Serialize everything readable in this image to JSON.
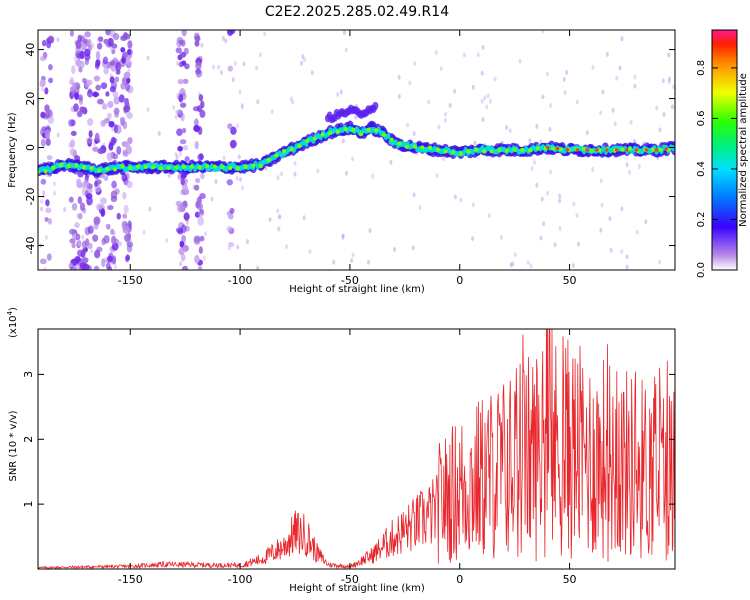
{
  "figure": {
    "title": "C2E2.2025.285.02.49.R14"
  },
  "chart_data": [
    {
      "type": "heatmap",
      "name": "spectrogram",
      "xlabel": "Height of straight line (km)",
      "ylabel": "Frequency (Hz)",
      "xlim": [
        -192,
        98
      ],
      "ylim": [
        -50,
        48
      ],
      "xticks": [
        -150,
        -100,
        -50,
        0,
        50
      ],
      "yticks": [
        -40,
        -20,
        0,
        20,
        40
      ],
      "grid": false,
      "colorbar": {
        "label": "Normalized spectral amplitude",
        "range": [
          0,
          0.95
        ],
        "ticks": [
          0.0,
          0.2,
          0.4,
          0.6,
          0.8
        ]
      },
      "ridge": {
        "description": "dominant frequency track (height km, frequency Hz)",
        "x": [
          -192,
          -180,
          -165,
          -150,
          -140,
          -120,
          -100,
          -90,
          -80,
          -70,
          -60,
          -50,
          -45,
          -40,
          -35,
          -30,
          -20,
          -10,
          0,
          10,
          20,
          30,
          40,
          50,
          60,
          70,
          80,
          90,
          98
        ],
        "y": [
          -10,
          -7,
          -9,
          -8,
          -8,
          -8,
          -8,
          -7,
          -2,
          2,
          6,
          8,
          6,
          8,
          6,
          2,
          0,
          -1,
          -2,
          -1,
          -1,
          -1,
          0,
          -1,
          -1,
          -1,
          -1,
          -1,
          0
        ]
      }
    },
    {
      "type": "line",
      "name": "snr",
      "xlabel": "Height of straight line (km)",
      "ylabel": "SNR (10 * v/v)",
      "exponent_label": "(x10",
      "exponent_value": "4",
      "exponent_close": ")",
      "xlim": [
        -192,
        98
      ],
      "ylim": [
        0,
        3.7
      ],
      "xticks": [
        -150,
        -100,
        -50,
        0,
        50
      ],
      "yticks": [
        1,
        2,
        3
      ],
      "grid": false,
      "series": [
        {
          "name": "SNR envelope",
          "color": "#e8262b",
          "x": [
            -192,
            -150,
            -135,
            -100,
            -90,
            -80,
            -75,
            -70,
            -65,
            -60,
            -50,
            -40,
            -30,
            -20,
            -10,
            0,
            10,
            20,
            30,
            40,
            50,
            60,
            70,
            80,
            90,
            98
          ],
          "y": [
            0.03,
            0.06,
            0.1,
            0.08,
            0.22,
            0.5,
            0.8,
            0.75,
            0.35,
            0.1,
            0.05,
            0.3,
            0.7,
            1.0,
            1.3,
            1.6,
            1.8,
            2.0,
            2.2,
            2.4,
            2.4,
            2.2,
            2.2,
            2.0,
            2.0,
            1.9
          ]
        }
      ]
    }
  ]
}
